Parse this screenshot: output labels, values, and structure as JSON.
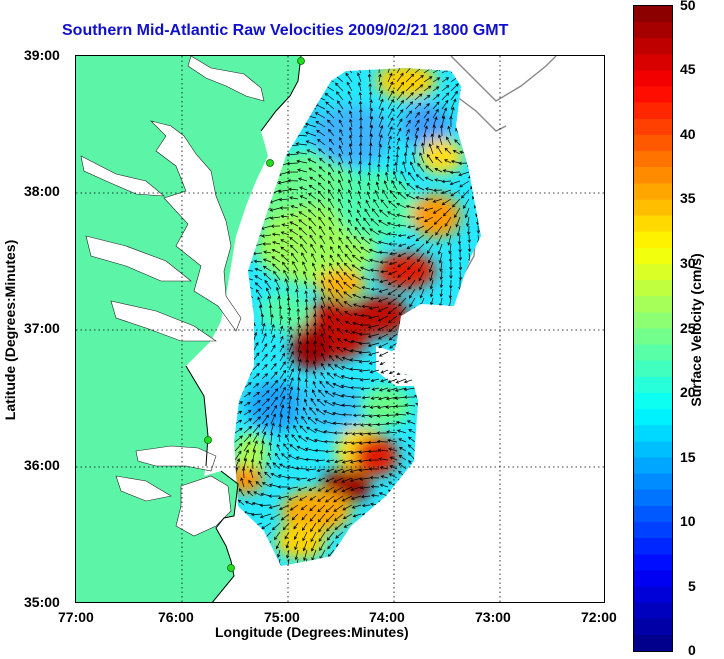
{
  "title": "Southern Mid-Atlantic Raw Velocities 2009/02/21 1800 GMT",
  "axes": {
    "xlabel": "Longitude (Degrees:Minutes)",
    "ylabel": "Latitude (Degrees:Minutes)",
    "x_ticks": [
      "77:00",
      "76:00",
      "75:00",
      "74:00",
      "73:00",
      "72:00"
    ],
    "y_ticks": [
      "39:00",
      "38:00",
      "37:00",
      "36:00",
      "35:00"
    ],
    "xlim_deg_west": [
      77,
      72
    ],
    "ylim_deg_north": [
      35,
      39
    ],
    "grid": "dotted"
  },
  "colorbar": {
    "label": "Surface Velocity (cm/s)",
    "ticks": [
      "50",
      "45",
      "40",
      "35",
      "30",
      "25",
      "20",
      "15",
      "10",
      "5",
      "0"
    ],
    "range": [
      0,
      50
    ],
    "colormap": "jet",
    "levels": 40
  },
  "colors": {
    "title": "#1010cc",
    "land": "#5cf5a8",
    "background": "#ffffff",
    "station": "#22dd22"
  }
}
